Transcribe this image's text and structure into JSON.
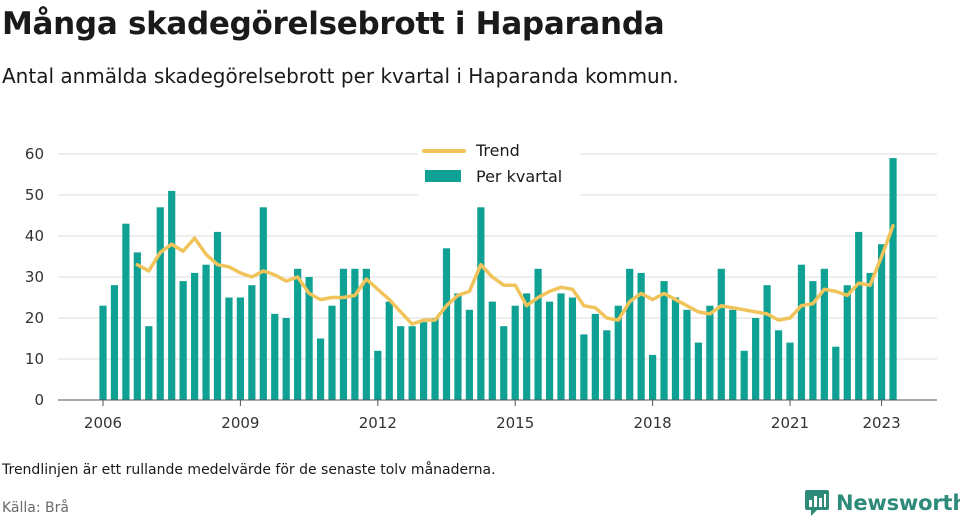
{
  "header": {
    "title": "Många skadegörelsebrott i Haparanda",
    "subtitle": "Antal anmälda skadegörelsebrott per kvartal i Haparanda kommun."
  },
  "footer": {
    "note": "Trendlinjen är ett rullande medelvärde för de senaste tolv månaderna.",
    "source": "Källa: Brå",
    "brand": "Newsworthy"
  },
  "colors": {
    "bars": "#0fa193",
    "trend": "#f1c45b",
    "grid": "#dddddd",
    "brand": "#2e8b7a"
  },
  "icons": {
    "brand_logo": "bar-chart-speech-bubble-icon"
  },
  "chart_data": {
    "type": "bar",
    "x_start": "2006 Q1",
    "x_ticks": [
      "2006",
      "2009",
      "2012",
      "2015",
      "2018",
      "2021",
      "2023"
    ],
    "y_ticks": [
      "0",
      "10",
      "20",
      "30",
      "40",
      "50",
      "60"
    ],
    "ylim": [
      0,
      60
    ],
    "grid": true,
    "legend_position": "top-center",
    "series": [
      {
        "name": "Per kvartal",
        "type": "bar",
        "values": [
          23,
          28,
          43,
          36,
          18,
          47,
          51,
          29,
          31,
          33,
          41,
          25,
          25,
          28,
          47,
          21,
          20,
          32,
          30,
          15,
          23,
          32,
          32,
          32,
          12,
          24,
          18,
          18,
          19,
          20,
          37,
          26,
          22,
          47,
          24,
          18,
          23,
          26,
          32,
          24,
          26,
          25,
          16,
          21,
          17,
          23,
          32,
          31,
          11,
          29,
          25,
          22,
          14,
          23,
          32,
          22,
          12,
          20,
          28,
          17,
          14,
          33,
          29,
          32,
          13,
          28,
          41,
          31,
          38,
          59
        ]
      },
      {
        "name": "Trend",
        "type": "line",
        "values": [
          null,
          null,
          null,
          33,
          31.5,
          36,
          38,
          36.3,
          39.5,
          35.5,
          33,
          32.5,
          31,
          30,
          31.5,
          30.5,
          29,
          30,
          26,
          24.5,
          25,
          25,
          25.5,
          29.5,
          27,
          24.5,
          21.5,
          18.5,
          19.5,
          19.5,
          23,
          25.5,
          26.5,
          33,
          30,
          28,
          28,
          23,
          25,
          26.5,
          27.5,
          27,
          23,
          22.5,
          20,
          19.5,
          24,
          26,
          24.5,
          26,
          24.5,
          23,
          21.5,
          21,
          23,
          22.5,
          22,
          21.5,
          21,
          19.5,
          20,
          23,
          23.5,
          27,
          26.5,
          25.5,
          28.5,
          28,
          35,
          42.5
        ]
      }
    ]
  }
}
